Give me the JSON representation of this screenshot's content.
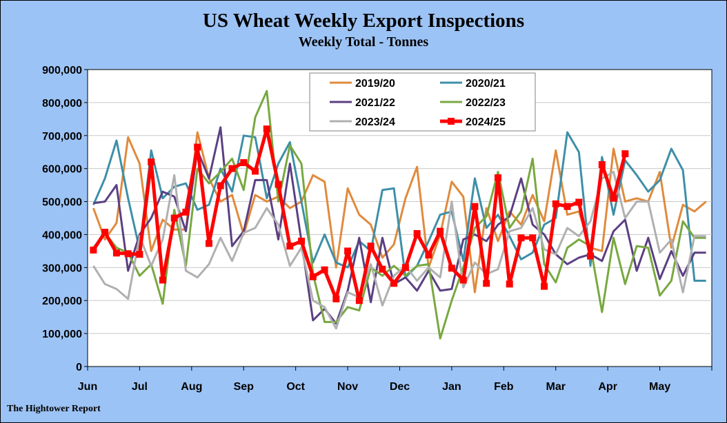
{
  "header": {
    "title": "US Wheat Weekly Export Inspections",
    "subtitle": "Weekly Total - Tonnes"
  },
  "footer": {
    "source": "The Hightower Report"
  },
  "chart_data": {
    "type": "line",
    "title": "US Wheat Weekly Export Inspections",
    "subtitle": "Weekly Total - Tonnes",
    "xlabel": "",
    "ylabel": "",
    "ylim": [
      0,
      900000
    ],
    "yticks": [
      0,
      100000,
      200000,
      300000,
      400000,
      500000,
      600000,
      700000,
      800000,
      900000
    ],
    "ytick_labels": [
      "0",
      "100,000",
      "200,000",
      "300,000",
      "400,000",
      "500,000",
      "600,000",
      "700,000",
      "800,000",
      "900,000"
    ],
    "x_range": [
      0,
      54
    ],
    "x_month_ticks": [
      0,
      4.5,
      9,
      13.5,
      18,
      22.5,
      27,
      31.5,
      36,
      40.5,
      45,
      49.5,
      54
    ],
    "x_month_labels": [
      "Jun",
      "Jul",
      "Aug",
      "Sep",
      "Oct",
      "Nov",
      "Dec",
      "Jan",
      "Feb",
      "Mar",
      "Apr",
      "May"
    ],
    "grid": true,
    "legend_position": "top-center",
    "series": [
      {
        "name": "2019/20",
        "color": "#e08a3c",
        "values": [
          480000,
          385000,
          435000,
          695000,
          615000,
          350000,
          445000,
          415000,
          415000,
          710000,
          570000,
          500000,
          520000,
          400000,
          520000,
          500000,
          515000,
          480000,
          500000,
          580000,
          560000,
          300000,
          540000,
          460000,
          430000,
          330000,
          370000,
          510000,
          605000,
          300000,
          400000,
          560000,
          515000,
          225000,
          480000,
          380000,
          470000,
          430000,
          520000,
          440000,
          655000,
          460000,
          470000,
          360000,
          350000,
          660000,
          500000,
          510000,
          500000,
          590000,
          360000,
          490000,
          470000,
          500000
        ]
      },
      {
        "name": "2020/21",
        "color": "#3d8fa8",
        "values": [
          490000,
          570000,
          685000,
          510000,
          355000,
          655000,
          510000,
          545000,
          555000,
          475000,
          490000,
          600000,
          530000,
          700000,
          695000,
          510000,
          615000,
          680000,
          500000,
          315000,
          400000,
          315000,
          300000,
          380000,
          350000,
          535000,
          540000,
          270000,
          305000,
          380000,
          460000,
          470000,
          320000,
          570000,
          420000,
          460000,
          395000,
          325000,
          345000,
          430000,
          450000,
          710000,
          650000,
          305000,
          635000,
          460000,
          625000,
          580000,
          530000,
          565000,
          660000,
          595000,
          260000,
          260000
        ]
      },
      {
        "name": "2021/22",
        "color": "#5b3f82",
        "values": [
          495000,
          500000,
          550000,
          290000,
          400000,
          450000,
          530000,
          515000,
          410000,
          655000,
          570000,
          725000,
          365000,
          410000,
          565000,
          565000,
          385000,
          615000,
          380000,
          140000,
          175000,
          130000,
          230000,
          390000,
          195000,
          390000,
          250000,
          270000,
          230000,
          290000,
          230000,
          235000,
          385000,
          400000,
          380000,
          430000,
          455000,
          570000,
          430000,
          400000,
          340000,
          310000,
          330000,
          340000,
          320000,
          410000,
          445000,
          290000,
          390000,
          265000,
          350000,
          275000,
          345000,
          345000
        ]
      },
      {
        "name": "2022/23",
        "color": "#78a840",
        "values": [
          360000,
          405000,
          360000,
          345000,
          275000,
          310000,
          190000,
          475000,
          305000,
          600000,
          555000,
          590000,
          630000,
          535000,
          755000,
          835000,
          500000,
          670000,
          615000,
          280000,
          135000,
          135000,
          180000,
          170000,
          300000,
          275000,
          305000,
          275000,
          305000,
          310000,
          85000,
          200000,
          300000,
          420000,
          455000,
          590000,
          420000,
          470000,
          630000,
          310000,
          255000,
          360000,
          385000,
          365000,
          165000,
          390000,
          250000,
          365000,
          360000,
          215000,
          260000,
          440000,
          390000,
          390000
        ]
      },
      {
        "name": "2023/24",
        "color": "#b0b0b0",
        "values": [
          305000,
          250000,
          235000,
          205000,
          395000,
          305000,
          385000,
          580000,
          290000,
          270000,
          310000,
          390000,
          320000,
          405000,
          420000,
          480000,
          430000,
          305000,
          360000,
          200000,
          180000,
          115000,
          225000,
          210000,
          310000,
          185000,
          275000,
          305000,
          260000,
          300000,
          270000,
          500000,
          240000,
          315000,
          280000,
          295000,
          410000,
          420000,
          480000,
          355000,
          340000,
          420000,
          395000,
          440000,
          570000,
          590000,
          450000,
          500000,
          500000,
          345000,
          385000,
          225000,
          395000,
          395000
        ]
      },
      {
        "name": "2024/25",
        "color": "#ff0000",
        "values": [
          353000,
          407000,
          344000,
          342000,
          340000,
          620000,
          262000,
          450000,
          468000,
          665000,
          373000,
          548000,
          600000,
          618000,
          592000,
          720000,
          552000,
          365000,
          380000,
          272000,
          293000,
          205000,
          350000,
          200000,
          365000,
          295000,
          252000,
          300000,
          403000,
          338000,
          410000,
          298000,
          262000,
          485000,
          252000,
          572000,
          250000,
          390000,
          390000,
          243000,
          493000,
          485000,
          498000,
          335000,
          612000,
          510000,
          645000
        ]
      }
    ]
  }
}
